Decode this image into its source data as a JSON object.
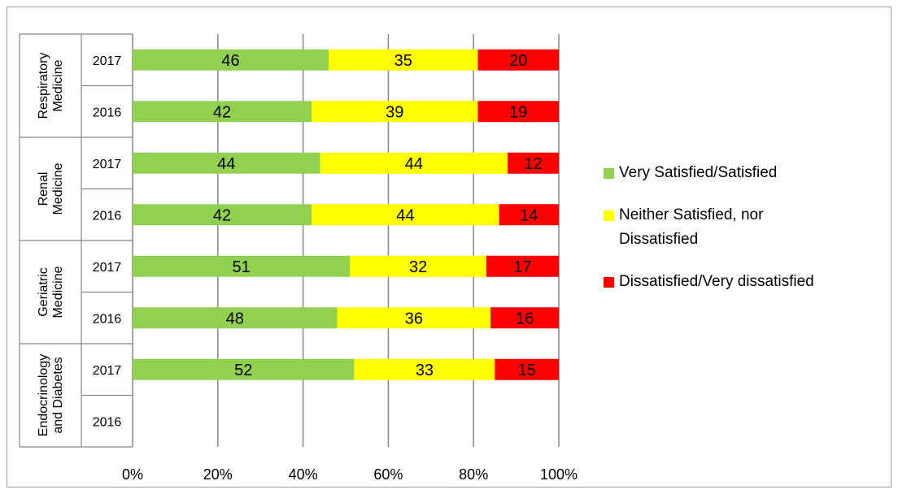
{
  "chart_data": {
    "type": "bar",
    "orientation": "horizontal",
    "stacked": true,
    "percent_stacked": true,
    "groups": [
      {
        "name": "Respiratory Medicine",
        "lines": [
          "Respiratory",
          "Medicine"
        ],
        "years": [
          "2017",
          "2016"
        ]
      },
      {
        "name": "Renal Medicine",
        "lines": [
          "Renal",
          "Medicine"
        ],
        "years": [
          "2017",
          "2016"
        ]
      },
      {
        "name": "Geriatric Medicine",
        "lines": [
          "Geriatric",
          "Medicine"
        ],
        "years": [
          "2017",
          "2016"
        ]
      },
      {
        "name": "Endocrinology and Diabetes",
        "lines": [
          "Endocrinology",
          "and Diabetes"
        ],
        "years": [
          "2017",
          "2016"
        ]
      }
    ],
    "series": [
      {
        "name": "Very Satisfied/Satisfied",
        "color": "#92d050",
        "values": [
          46,
          42,
          44,
          42,
          51,
          48,
          52,
          null
        ]
      },
      {
        "name": "Neither Satisfied, nor Dissatisfied",
        "color": "#ffff00",
        "values": [
          35,
          39,
          44,
          44,
          32,
          36,
          33,
          null
        ]
      },
      {
        "name": "Dissatisfied/Very dissatisfied",
        "color": "#ff0000",
        "values": [
          20,
          19,
          12,
          14,
          17,
          16,
          15,
          null
        ]
      }
    ],
    "x_ticks": [
      "0%",
      "20%",
      "40%",
      "60%",
      "80%",
      "100%"
    ],
    "xlim": [
      0,
      100
    ],
    "grid": true,
    "legend_position": "right"
  }
}
